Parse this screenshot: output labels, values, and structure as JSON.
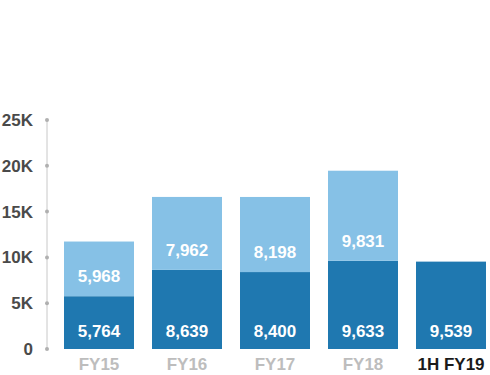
{
  "chart_data": {
    "type": "bar",
    "stacked": true,
    "data_labels": true,
    "grid": false,
    "categories": [
      "FY15",
      "FY16",
      "FY17",
      "FY18",
      "1H FY19"
    ],
    "series": [
      {
        "color": "#1f78b0",
        "values": [
          5764,
          8639,
          8400,
          9633,
          9539
        ],
        "value_labels": [
          "5,764",
          "8,639",
          "8,400",
          "9,633",
          "9,539"
        ]
      },
      {
        "color": "#86c1e6",
        "values": [
          5968,
          7962,
          8198,
          9831,
          null
        ],
        "value_labels": [
          "5,968",
          "7,962",
          "8,198",
          "9,831",
          null
        ]
      }
    ],
    "ylim": [
      0,
      25000
    ],
    "yticks": [
      0,
      {
        "value": 5000,
        "label": "5K"
      },
      {
        "value": 10000,
        "label": "10K"
      },
      {
        "value": 15000,
        "label": "15K"
      },
      {
        "value": 20000,
        "label": "20K"
      },
      {
        "value": 25000,
        "label": "25K"
      }
    ]
  }
}
